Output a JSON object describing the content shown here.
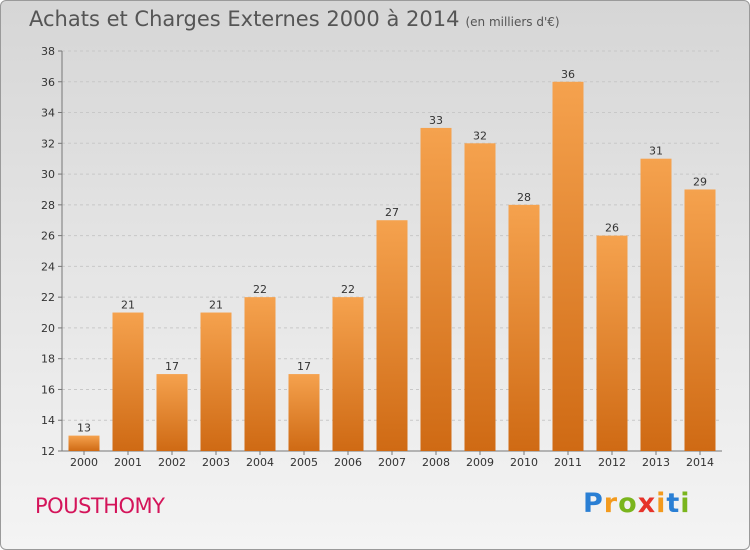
{
  "title": "Achats et Charges Externes 2000 à 2014",
  "subtitle": "(en milliers d'€)",
  "commune": "POUSTHOMY",
  "logo": {
    "letters": [
      "P",
      "r",
      "o",
      "x",
      "i",
      "t",
      "i"
    ],
    "colors": [
      "#2a7fd4",
      "#f39a1d",
      "#7ab51d",
      "#e6332a",
      "#f39a1d",
      "#2a7fd4",
      "#7ab51d"
    ]
  },
  "colors": {
    "bar_top": "#f5a24e",
    "bar_bottom": "#cf6a14",
    "grid": "#c8c8c8"
  },
  "chart_data": {
    "type": "bar",
    "categories": [
      "2000",
      "2001",
      "2002",
      "2003",
      "2004",
      "2005",
      "2006",
      "2007",
      "2008",
      "2009",
      "2010",
      "2011",
      "2012",
      "2013",
      "2014"
    ],
    "values": [
      13,
      21,
      17,
      21,
      22,
      17,
      22,
      27,
      33,
      32,
      28,
      36,
      26,
      31,
      29
    ],
    "ylim": [
      12,
      38
    ],
    "yticks": [
      12,
      14,
      16,
      18,
      20,
      22,
      24,
      26,
      28,
      30,
      32,
      34,
      36,
      38
    ],
    "grid": true
  }
}
